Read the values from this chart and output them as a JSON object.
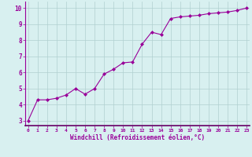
{
  "x": [
    0,
    1,
    2,
    3,
    4,
    5,
    6,
    7,
    8,
    9,
    10,
    11,
    12,
    13,
    14,
    15,
    16,
    17,
    18,
    19,
    20,
    21,
    22,
    23
  ],
  "y": [
    3.0,
    4.3,
    4.3,
    4.4,
    4.6,
    5.0,
    4.65,
    5.0,
    5.9,
    6.2,
    6.6,
    6.65,
    7.75,
    8.5,
    8.35,
    9.35,
    9.45,
    9.5,
    9.55,
    9.65,
    9.7,
    9.75,
    9.85,
    10.0
  ],
  "line_color": "#990099",
  "marker": "D",
  "marker_size": 2,
  "bg_color": "#d8f0f0",
  "grid_color": "#b0d0d0",
  "xlabel": "Windchill (Refroidissement éolien,°C)",
  "xlabel_color": "#990099",
  "xtick_labels": [
    "0",
    "1",
    "2",
    "3",
    "4",
    "5",
    "6",
    "7",
    "8",
    "9",
    "10",
    "11",
    "12",
    "13",
    "14",
    "15",
    "16",
    "17",
    "18",
    "19",
    "20",
    "21",
    "22",
    "23"
  ],
  "ytick_vals": [
    3,
    4,
    5,
    6,
    7,
    8,
    9,
    10
  ],
  "ylim": [
    2.7,
    10.4
  ],
  "xlim": [
    -0.3,
    23.3
  ],
  "tick_color": "#990099",
  "spine_color": "#990099",
  "spine_bottom_color": "#660066",
  "xlabel_fontsize": 5.5,
  "xtick_fontsize": 4.5,
  "ytick_fontsize": 5.5,
  "linewidth": 0.8
}
